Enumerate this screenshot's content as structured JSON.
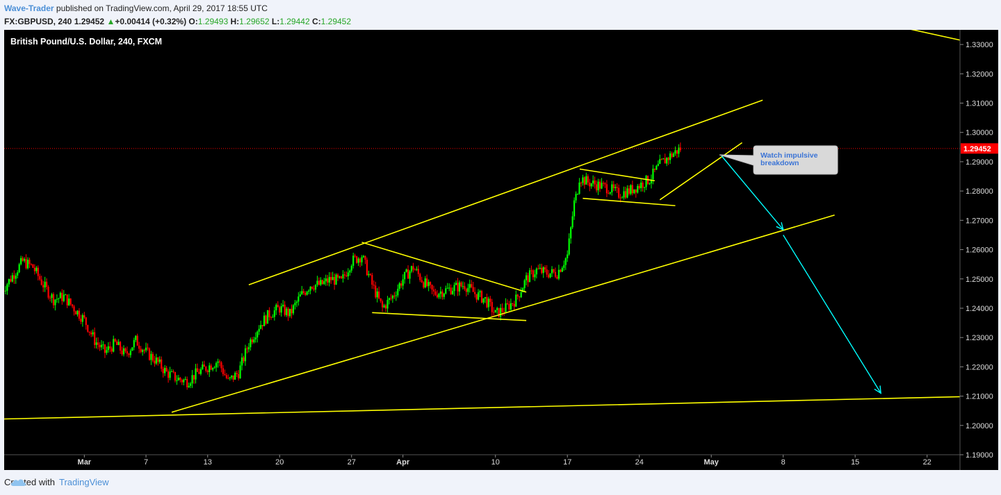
{
  "header": {
    "author": "Wave-Trader",
    "published_text": " published on TradingView.com, April 29, 2017 18:55 UTC",
    "symbol": "FX:GBPUSD, 240",
    "last": "1.29452",
    "change_arrow": "▲",
    "change": "+0.00414 (+0.32%)",
    "o_label": "O:",
    "o_value": "1.29493",
    "h_label": "H:",
    "h_value": "1.29652",
    "l_label": "L:",
    "l_value": "1.29442",
    "c_label": "C:",
    "c_value": "1.29452"
  },
  "footer": {
    "created_with": "Created with",
    "brand": "TradingView",
    "brand_icon": "tradingview-cloud-icon"
  },
  "colors": {
    "up": "#00ff00",
    "down": "#ff0000",
    "trendline": "#ffff00",
    "arrow": "#00ffff",
    "price_tag": "#ff0000",
    "callout_bg": "#d9d9d9",
    "callout_text": "#3b74d6"
  },
  "chart_data": {
    "type": "candlestick",
    "title": "British Pound/U.S. Dollar, 240, FXCM",
    "ylim": [
      1.19,
      1.335
    ],
    "y_ticks": [
      "1.33000",
      "1.32000",
      "1.31000",
      "1.30000",
      "1.29000",
      "1.28000",
      "1.27000",
      "1.26000",
      "1.25000",
      "1.24000",
      "1.23000",
      "1.22000",
      "1.21000",
      "1.20000",
      "1.19000"
    ],
    "x_ticks": [
      "Mar",
      "7",
      "13",
      "20",
      "27",
      "Apr",
      "10",
      "17",
      "24",
      "May",
      "8",
      "15",
      "22"
    ],
    "x_tick_days": [
      0,
      6,
      12,
      19,
      26,
      31,
      40,
      47,
      54,
      61,
      68,
      75,
      82
    ],
    "x_range_days": [
      -7.8,
      85.2
    ],
    "last_price": "1.29452",
    "last_price_value": 1.29452,
    "candles_close_path": [
      [
        -8,
        1.246
      ],
      [
        -7,
        1.251
      ],
      [
        -6,
        1.256
      ],
      [
        -5,
        1.254
      ],
      [
        -4,
        1.248
      ],
      [
        -3,
        1.243
      ],
      [
        -2,
        1.244
      ],
      [
        -1,
        1.24
      ],
      [
        0,
        1.236
      ],
      [
        1,
        1.229
      ],
      [
        2,
        1.225
      ],
      [
        3,
        1.228
      ],
      [
        4,
        1.224
      ],
      [
        5,
        1.229
      ],
      [
        6,
        1.225
      ],
      [
        7,
        1.222
      ],
      [
        8,
        1.218
      ],
      [
        9,
        1.216
      ],
      [
        10,
        1.215
      ],
      [
        11,
        1.218
      ],
      [
        12,
        1.22
      ],
      [
        13,
        1.222
      ],
      [
        14,
        1.215
      ],
      [
        15,
        1.218
      ],
      [
        16,
        1.228
      ],
      [
        17,
        1.234
      ],
      [
        18,
        1.238
      ],
      [
        19,
        1.24
      ],
      [
        20,
        1.238
      ],
      [
        21,
        1.244
      ],
      [
        22,
        1.248
      ],
      [
        23,
        1.248
      ],
      [
        24,
        1.25
      ],
      [
        25,
        1.249
      ],
      [
        26,
        1.256
      ],
      [
        27,
        1.258
      ],
      [
        28,
        1.248
      ],
      [
        29,
        1.24
      ],
      [
        30,
        1.244
      ],
      [
        31,
        1.25
      ],
      [
        32,
        1.254
      ],
      [
        33,
        1.249
      ],
      [
        34,
        1.245
      ],
      [
        35,
        1.246
      ],
      [
        36,
        1.247
      ],
      [
        37,
        1.248
      ],
      [
        38,
        1.245
      ],
      [
        39,
        1.243
      ],
      [
        40,
        1.238
      ],
      [
        41,
        1.24
      ],
      [
        42,
        1.243
      ],
      [
        43,
        1.25
      ],
      [
        44,
        1.253
      ],
      [
        45,
        1.252
      ],
      [
        46,
        1.252
      ],
      [
        47,
        1.258
      ],
      [
        48,
        1.285
      ],
      [
        49,
        1.283
      ],
      [
        50,
        1.282
      ],
      [
        51,
        1.281
      ],
      [
        52,
        1.279
      ],
      [
        53,
        1.28
      ],
      [
        54,
        1.282
      ],
      [
        55,
        1.284
      ],
      [
        56,
        1.289
      ],
      [
        57,
        1.292
      ],
      [
        58,
        1.2945
      ]
    ],
    "annotations": {
      "callout_text": "Watch impulsive breakdown",
      "trendlines": [
        {
          "from": [
            -7.8,
            1.2022
          ],
          "to": [
            85.2,
            1.2098
          ]
        },
        {
          "from": [
            8.5,
            1.2045
          ],
          "to": [
            73,
            1.2718
          ]
        },
        {
          "from": [
            16,
            1.248
          ],
          "to": [
            66,
            1.311
          ]
        },
        {
          "from": [
            27,
            1.2625
          ],
          "to": [
            43,
            1.2455
          ]
        },
        {
          "from": [
            28,
            1.2385
          ],
          "to": [
            43,
            1.2358
          ]
        },
        {
          "from": [
            48.2,
            1.2875
          ],
          "to": [
            55.5,
            1.2835
          ]
        },
        {
          "from": [
            48.5,
            1.2775
          ],
          "to": [
            57.5,
            1.275
          ]
        },
        {
          "from": [
            56,
            1.277
          ],
          "to": [
            64,
            1.2965
          ]
        },
        {
          "from": [
            80,
            1.3355
          ],
          "to": [
            85.2,
            1.3315
          ]
        }
      ],
      "arrows": [
        {
          "from": [
            62,
            1.292
          ],
          "to": [
            68,
            1.2668
          ]
        },
        {
          "from": [
            68,
            1.265
          ],
          "to": [
            77.5,
            1.211
          ]
        }
      ]
    }
  }
}
